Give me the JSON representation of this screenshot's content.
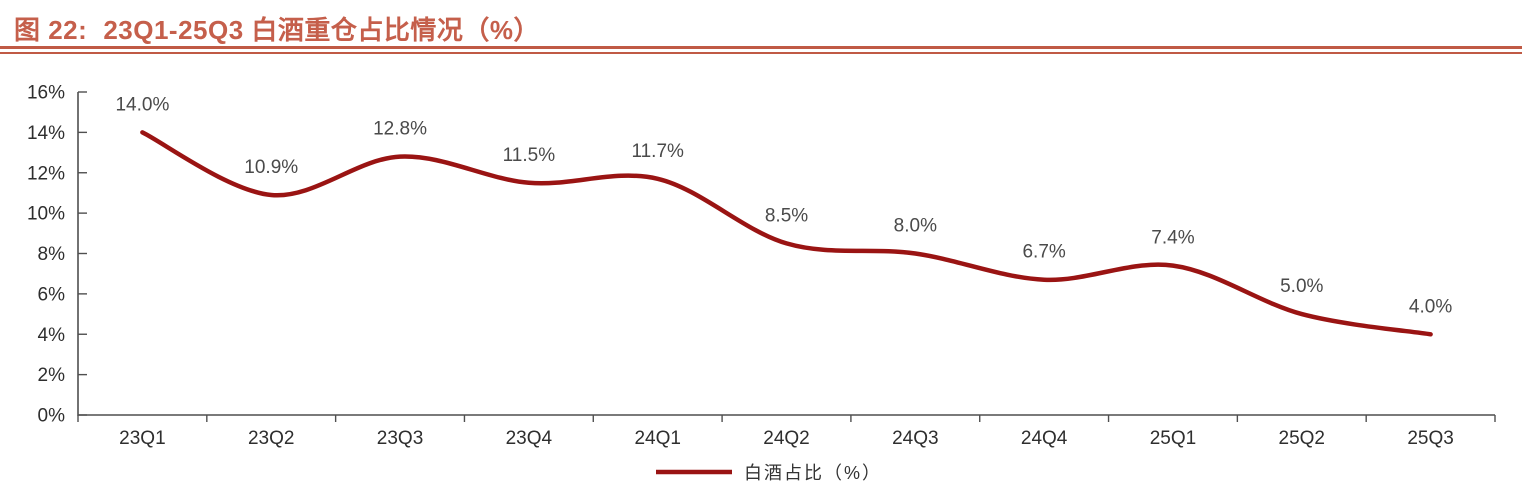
{
  "header": {
    "figure_label": "图 22:",
    "figure_title": "23Q1-25Q3 白酒重仓占比情况（%）",
    "title_color": "#C55F4B",
    "rule_color": "#C05A45"
  },
  "chart_data": {
    "type": "line",
    "title": "23Q1-25Q3 白酒重仓占比情况（%）",
    "categories": [
      "23Q1",
      "23Q2",
      "23Q3",
      "23Q4",
      "24Q1",
      "24Q2",
      "24Q3",
      "24Q4",
      "25Q1",
      "25Q2",
      "25Q3"
    ],
    "series": [
      {
        "name": "白酒占比（%）",
        "values": [
          14.0,
          10.9,
          12.8,
          11.5,
          11.7,
          8.5,
          8.0,
          6.7,
          7.4,
          5.0,
          4.0
        ],
        "color": "#9A1413",
        "smooth": true
      }
    ],
    "data_labels": [
      "14.0%",
      "10.9%",
      "12.8%",
      "11.5%",
      "11.7%",
      "8.5%",
      "8.0%",
      "6.7%",
      "7.4%",
      "5.0%",
      "4.0%"
    ],
    "ylim": [
      0,
      16
    ],
    "ytick_step": 2,
    "ytick_labels": [
      "0%",
      "2%",
      "4%",
      "6%",
      "8%",
      "10%",
      "12%",
      "14%",
      "16%"
    ],
    "grid": false,
    "legend": {
      "label": "白酒占比（%）",
      "position": "bottom-center"
    },
    "colors": {
      "axis": "#4f4f4f",
      "tick_label": "#2e2e2e",
      "data_label": "#4a4a4a",
      "legend_text": "#333333"
    }
  }
}
